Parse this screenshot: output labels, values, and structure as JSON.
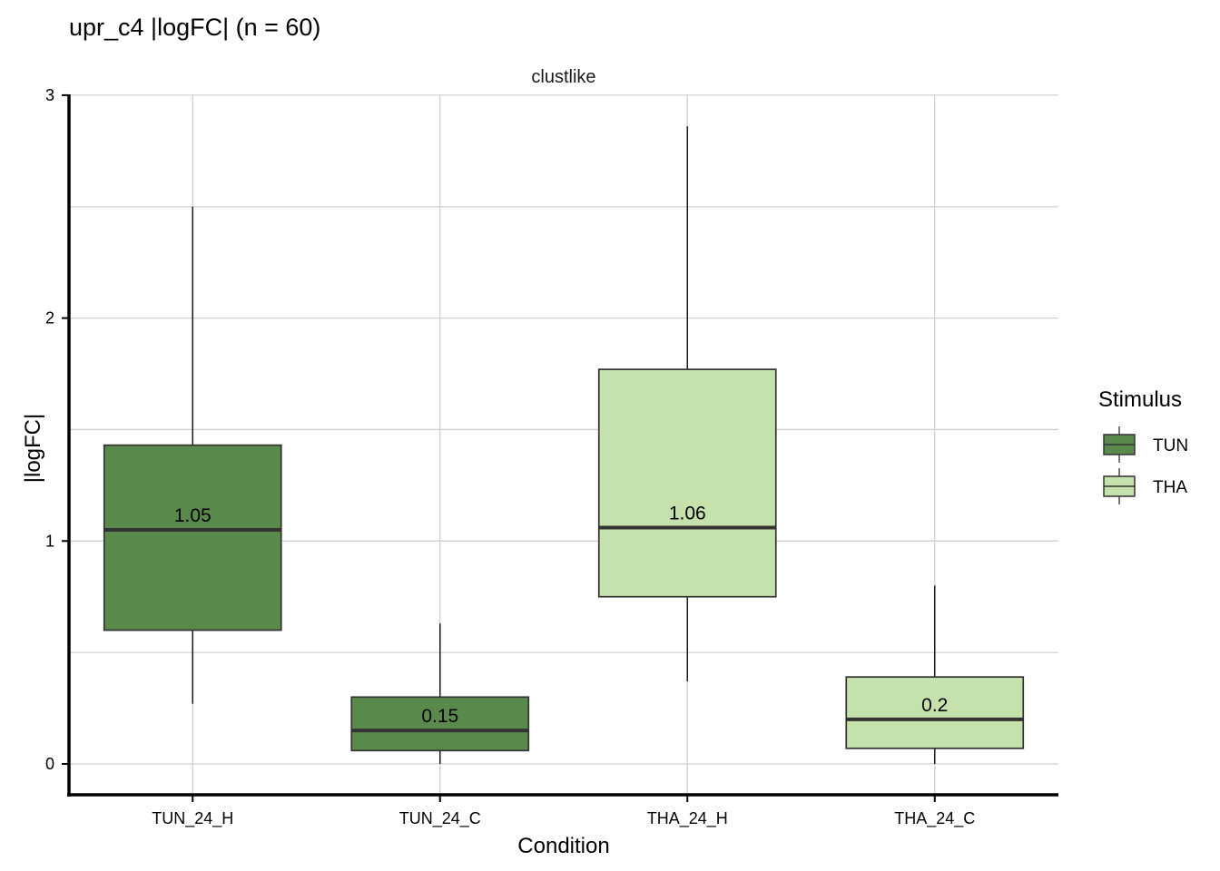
{
  "chart_data": {
    "type": "boxplot",
    "title": "upr_c4 |logFC| (n = 60)",
    "facet_label": "clustlike",
    "xlabel": "Condition",
    "ylabel": "|logFC|",
    "ylim": [
      -0.13,
      3
    ],
    "yticks": [
      0,
      1,
      2,
      3
    ],
    "ytick_labels": [
      "0",
      "1",
      "2",
      "3"
    ],
    "grid": true,
    "legend": {
      "title": "Stimulus",
      "position": "right",
      "entries": [
        {
          "label": "TUN",
          "color": "#5a8a4b"
        },
        {
          "label": "THA",
          "color": "#c5e2ac"
        }
      ]
    },
    "categories": [
      "TUN_24_H",
      "TUN_24_C",
      "THA_24_H",
      "THA_24_C"
    ],
    "boxes": [
      {
        "category": "TUN_24_H",
        "stimulus": "TUN",
        "whisker_low": 0.27,
        "q1": 0.6,
        "median": 1.05,
        "q3": 1.43,
        "whisker_high": 2.5,
        "median_label": "1.05"
      },
      {
        "category": "TUN_24_C",
        "stimulus": "TUN",
        "whisker_low": 0.0,
        "q1": 0.06,
        "median": 0.15,
        "q3": 0.3,
        "whisker_high": 0.63,
        "median_label": "0.15"
      },
      {
        "category": "THA_24_H",
        "stimulus": "THA",
        "whisker_low": 0.37,
        "q1": 0.75,
        "median": 1.06,
        "q3": 1.77,
        "whisker_high": 2.86,
        "median_label": "1.06"
      },
      {
        "category": "THA_24_C",
        "stimulus": "THA",
        "whisker_low": 0.0,
        "q1": 0.07,
        "median": 0.2,
        "q3": 0.39,
        "whisker_high": 0.8,
        "median_label": "0.2"
      }
    ]
  }
}
